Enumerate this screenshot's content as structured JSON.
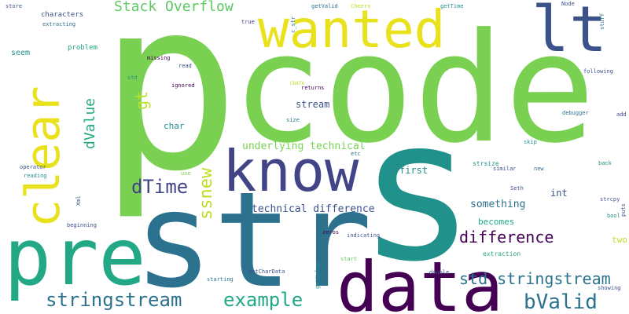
{
  "palette": {
    "light_green": "#7ad151",
    "teal": "#21918c",
    "sea_green": "#22a884",
    "steel_blue": "#2c728e",
    "slate": "#3b528b",
    "indigo": "#414487",
    "purple": "#440154",
    "yellow": "#e8e11c",
    "lime": "#bddf26",
    "bright_green": "#5ec962"
  },
  "words": [
    {
      "text": "p"
    },
    {
      "text": "code"
    },
    {
      "text": "s"
    },
    {
      "text": "str"
    },
    {
      "text": "know"
    },
    {
      "text": "wanted"
    },
    {
      "text": "pre"
    },
    {
      "text": "clear"
    },
    {
      "text": "lt"
    },
    {
      "text": "data"
    },
    {
      "text": "Stack Overflow"
    },
    {
      "text": "dValue"
    },
    {
      "text": "gt"
    },
    {
      "text": "dTime"
    },
    {
      "text": "ssnew"
    },
    {
      "text": "difference"
    },
    {
      "text": "std stringstream"
    },
    {
      "text": "stringstream"
    },
    {
      "text": "example"
    },
    {
      "text": "bValid"
    },
    {
      "text": "underlying technical"
    },
    {
      "text": "technical difference"
    },
    {
      "text": "something"
    },
    {
      "text": "stream"
    },
    {
      "text": "char"
    },
    {
      "text": "first"
    },
    {
      "text": "int"
    },
    {
      "text": "seem"
    },
    {
      "text": "becomes"
    },
    {
      "text": "two"
    },
    {
      "text": "characters"
    },
    {
      "text": "problem"
    },
    {
      "text": "store"
    },
    {
      "text": "extracting"
    },
    {
      "text": "missing"
    },
    {
      "text": "read"
    },
    {
      "text": "std"
    },
    {
      "text": "ignored"
    },
    {
      "text": "true"
    },
    {
      "text": "c_str"
    },
    {
      "text": "getValid"
    },
    {
      "text": "Cheers"
    },
    {
      "text": "getTime"
    },
    {
      "text": "Node"
    },
    {
      "text": "stuff"
    },
    {
      "text": "following"
    },
    {
      "text": "returns"
    },
    {
      "text": "CDATA"
    },
    {
      "text": "size"
    },
    {
      "text": "debugger"
    },
    {
      "text": "add"
    },
    {
      "text": "skip"
    },
    {
      "text": "etc"
    },
    {
      "text": "strsize"
    },
    {
      "text": "similar"
    },
    {
      "text": "new"
    },
    {
      "text": "back"
    },
    {
      "text": "operator"
    },
    {
      "text": "use"
    },
    {
      "text": "reading"
    },
    {
      "text": "Xml"
    },
    {
      "text": "Seth"
    },
    {
      "text": "strcpy"
    },
    {
      "text": "bool"
    },
    {
      "text": "puts"
    },
    {
      "text": "beginning"
    },
    {
      "text": "zeros"
    },
    {
      "text": "indicating"
    },
    {
      "text": "extraction"
    },
    {
      "text": "start"
    },
    {
      "text": "double"
    },
    {
      "text": "getValue"
    },
    {
      "text": "starting"
    },
    {
      "text": "getCharData"
    },
    {
      "text": "showing"
    }
  ]
}
